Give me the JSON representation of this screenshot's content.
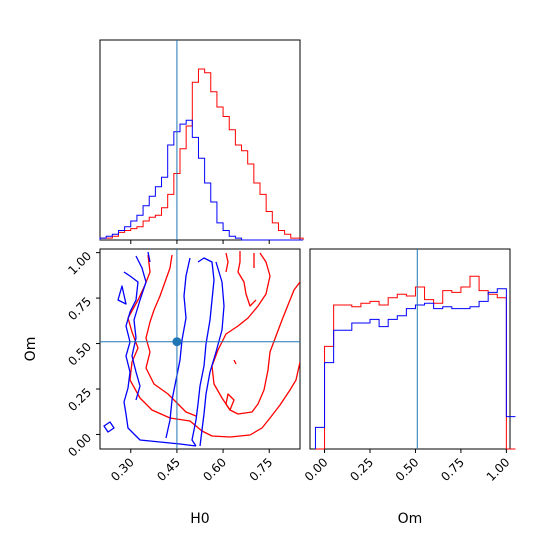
{
  "colors": {
    "series_red": "#ff0000",
    "series_blue": "#0000ff",
    "truth_line": "#1f77b4",
    "axis": "#000000"
  },
  "chart_data": [
    {
      "type": "histogram",
      "panel": "H0 marginal (top-left)",
      "xlim": [
        0.2,
        0.85
      ],
      "bins_x": [
        0.2,
        0.22,
        0.24,
        0.26,
        0.28,
        0.3,
        0.32,
        0.34,
        0.36,
        0.38,
        0.4,
        0.42,
        0.44,
        0.46,
        0.48,
        0.5,
        0.52,
        0.54,
        0.56,
        0.58,
        0.6,
        0.62,
        0.64,
        0.66,
        0.68,
        0.7,
        0.72,
        0.74,
        0.76,
        0.78,
        0.8,
        0.82,
        0.84
      ],
      "series": [
        {
          "values_normalized": [
            0.01,
            0.01,
            0.02,
            0.04,
            0.05,
            0.06,
            0.07,
            0.1,
            0.12,
            0.13,
            0.17,
            0.24,
            0.35,
            0.48,
            0.6,
            0.83,
            0.9,
            0.88,
            0.78,
            0.7,
            0.65,
            0.58,
            0.5,
            0.47,
            0.4,
            0.3,
            0.24,
            0.15,
            0.09,
            0.05,
            0.03,
            0.01,
            0.01
          ]
        },
        {
          "values_normalized": [
            0.01,
            0.02,
            0.03,
            0.05,
            0.07,
            0.1,
            0.13,
            0.18,
            0.23,
            0.28,
            0.33,
            0.5,
            0.57,
            0.61,
            0.63,
            0.54,
            0.43,
            0.3,
            0.2,
            0.09,
            0.05,
            0.02,
            0.01,
            0.0,
            0.0,
            0.0,
            0.0,
            0.0,
            0.0,
            0.0,
            0.0,
            0.0,
            0.0
          ]
        }
      ],
      "truth_x": 0.45
    },
    {
      "type": "contour",
      "panel": "Om vs H0 (bottom-left)",
      "xlabel": "H0",
      "ylabel": "Om",
      "xlim": [
        0.2,
        0.85
      ],
      "ylim": [
        -0.08,
        1.02
      ],
      "xticks": [
        "0.30",
        "0.45",
        "0.60",
        "0.75"
      ],
      "yticks": [
        "0.00",
        "0.25",
        "0.50",
        "0.75",
        "1.00"
      ],
      "truth": {
        "x": 0.45,
        "y": 0.51
      }
    },
    {
      "type": "histogram",
      "panel": "Om marginal (bottom-right)",
      "xlabel": "Om",
      "xlim": [
        -0.08,
        1.02
      ],
      "xticks": [
        "0.00",
        "0.25",
        "0.50",
        "0.75",
        "1.00"
      ],
      "bins_x": [
        -0.05,
        0.0,
        0.05,
        0.1,
        0.15,
        0.2,
        0.25,
        0.3,
        0.35,
        0.4,
        0.45,
        0.5,
        0.55,
        0.6,
        0.65,
        0.7,
        0.75,
        0.8,
        0.85,
        0.9,
        0.95,
        1.0
      ],
      "series": [
        {
          "values_normalized": [
            0.0,
            0.57,
            0.8,
            0.8,
            0.79,
            0.81,
            0.82,
            0.8,
            0.84,
            0.86,
            0.85,
            0.9,
            0.83,
            0.81,
            0.88,
            0.87,
            0.9,
            0.96,
            0.88,
            0.86,
            0.84,
            0.0
          ]
        },
        {
          "values_normalized": [
            0.12,
            0.48,
            0.66,
            0.66,
            0.7,
            0.7,
            0.72,
            0.68,
            0.72,
            0.74,
            0.78,
            0.8,
            0.81,
            0.78,
            0.79,
            0.78,
            0.78,
            0.79,
            0.82,
            0.87,
            0.89,
            0.18
          ]
        }
      ],
      "truth_x": 0.51
    }
  ]
}
